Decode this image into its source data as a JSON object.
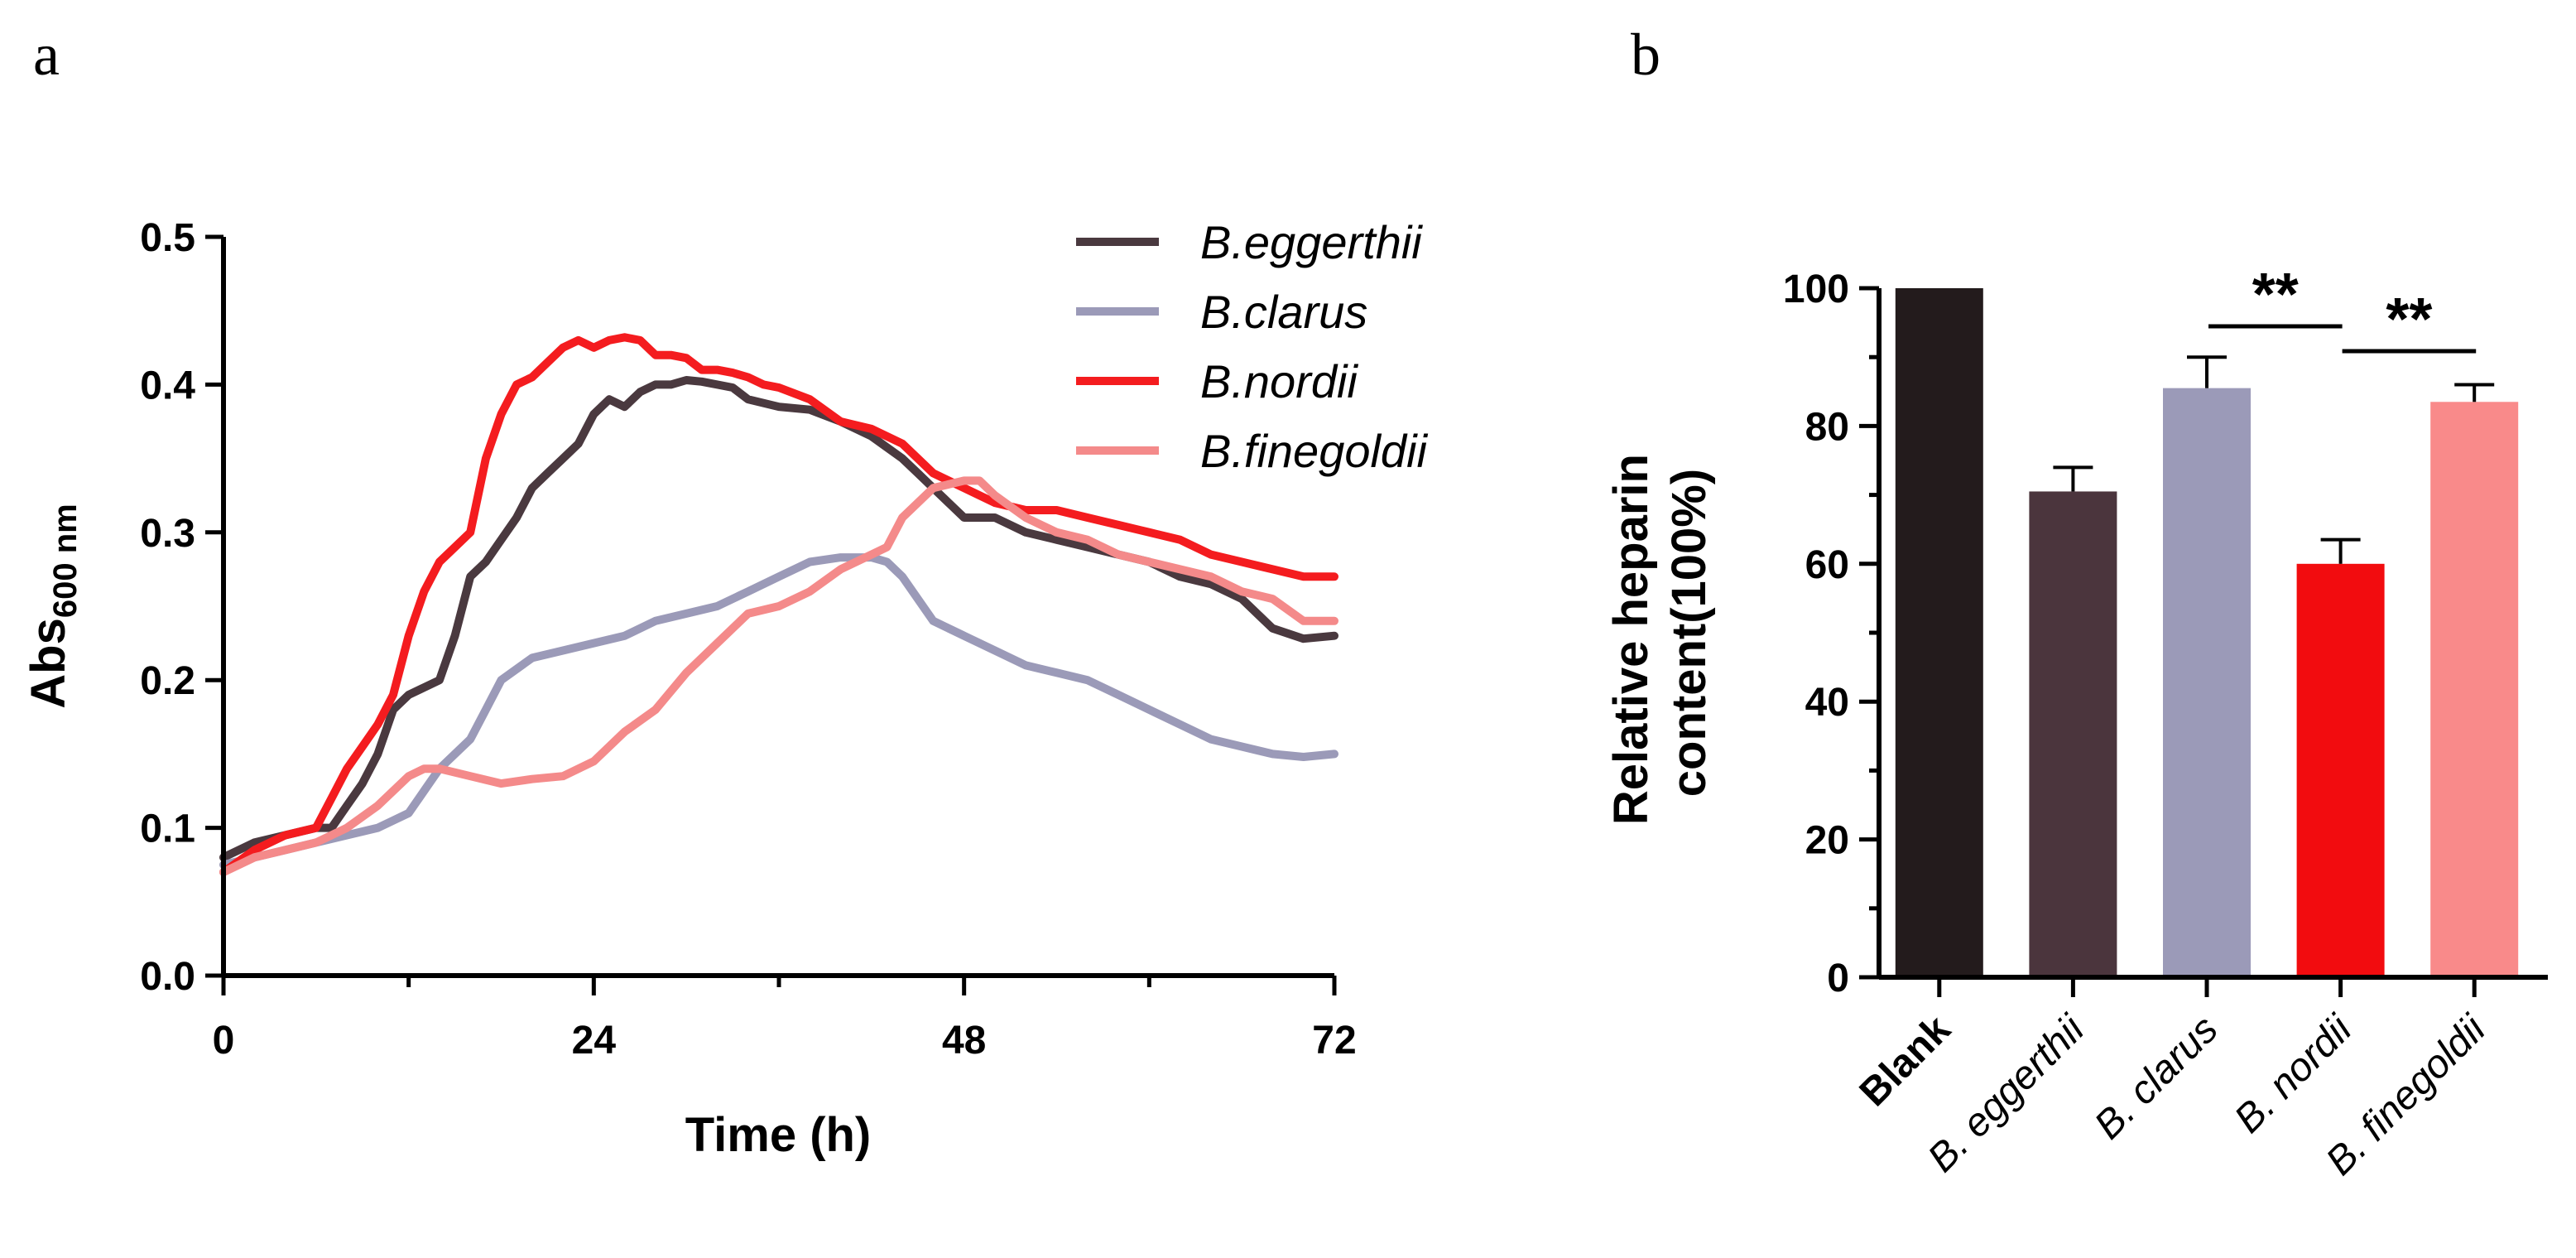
{
  "chart_data": [
    {
      "panel": "a",
      "type": "line",
      "xlabel": "Time (h)",
      "ylabel": "Abs",
      "ylabel_sub": "600 nm",
      "xlim": [
        0,
        72
      ],
      "ylim": [
        0,
        0.5
      ],
      "xticks": [
        0,
        24,
        48,
        72
      ],
      "xticks_minor": [
        12,
        36,
        60
      ],
      "yticks": [
        0.0,
        0.1,
        0.2,
        0.3,
        0.4,
        0.5
      ],
      "ytick_labels": [
        "0.0",
        "0.1",
        "0.2",
        "0.3",
        "0.4",
        "0.5"
      ],
      "legend_position": "top-right",
      "series": [
        {
          "name": "B.eggerthii",
          "color": "#4a393f",
          "x": [
            0,
            2,
            4,
            6,
            7,
            8,
            9,
            10,
            11,
            12,
            13,
            14,
            15,
            16,
            17,
            18,
            19,
            20,
            21,
            22,
            23,
            24,
            25,
            26,
            27,
            28,
            29,
            30,
            31,
            32,
            33,
            34,
            36,
            38,
            40,
            42,
            44,
            45,
            46,
            47,
            48,
            50,
            52,
            54,
            56,
            58,
            60,
            62,
            64,
            66,
            68,
            70,
            72
          ],
          "y": [
            0.08,
            0.09,
            0.095,
            0.1,
            0.1,
            0.115,
            0.13,
            0.15,
            0.18,
            0.19,
            0.195,
            0.2,
            0.23,
            0.27,
            0.28,
            0.295,
            0.31,
            0.33,
            0.34,
            0.35,
            0.36,
            0.38,
            0.39,
            0.385,
            0.395,
            0.4,
            0.4,
            0.403,
            0.402,
            0.4,
            0.398,
            0.39,
            0.385,
            0.383,
            0.375,
            0.365,
            0.35,
            0.34,
            0.33,
            0.32,
            0.31,
            0.31,
            0.3,
            0.295,
            0.29,
            0.285,
            0.28,
            0.27,
            0.265,
            0.255,
            0.235,
            0.228,
            0.23
          ]
        },
        {
          "name": "B.clarus",
          "color": "#9b9ab8",
          "x": [
            0,
            2,
            4,
            6,
            8,
            10,
            11,
            12,
            14,
            16,
            17,
            18,
            20,
            22,
            24,
            26,
            28,
            30,
            32,
            34,
            36,
            38,
            40,
            42,
            43,
            44,
            46,
            48,
            50,
            52,
            54,
            56,
            58,
            60,
            62,
            64,
            66,
            68,
            70,
            72
          ],
          "y": [
            0.075,
            0.08,
            0.085,
            0.09,
            0.095,
            0.1,
            0.105,
            0.11,
            0.14,
            0.16,
            0.18,
            0.2,
            0.215,
            0.22,
            0.225,
            0.23,
            0.24,
            0.245,
            0.25,
            0.26,
            0.27,
            0.28,
            0.283,
            0.283,
            0.28,
            0.27,
            0.24,
            0.23,
            0.22,
            0.21,
            0.205,
            0.2,
            0.19,
            0.18,
            0.17,
            0.16,
            0.155,
            0.15,
            0.148,
            0.15
          ]
        },
        {
          "name": "B.nordii",
          "color": "#f41c1f",
          "x": [
            0,
            2,
            4,
            6,
            7,
            8,
            9,
            10,
            11,
            12,
            13,
            14,
            15,
            16,
            17,
            18,
            19,
            20,
            21,
            22,
            23,
            24,
            25,
            26,
            27,
            28,
            29,
            30,
            31,
            32,
            33,
            34,
            35,
            36,
            38,
            40,
            42,
            44,
            46,
            48,
            50,
            52,
            54,
            56,
            58,
            60,
            62,
            64,
            66,
            68,
            70,
            72
          ],
          "y": [
            0.07,
            0.085,
            0.095,
            0.1,
            0.12,
            0.14,
            0.155,
            0.17,
            0.19,
            0.23,
            0.26,
            0.28,
            0.29,
            0.3,
            0.35,
            0.38,
            0.4,
            0.405,
            0.415,
            0.425,
            0.43,
            0.425,
            0.43,
            0.432,
            0.43,
            0.42,
            0.42,
            0.418,
            0.41,
            0.41,
            0.408,
            0.405,
            0.4,
            0.398,
            0.39,
            0.375,
            0.37,
            0.36,
            0.34,
            0.33,
            0.32,
            0.315,
            0.315,
            0.31,
            0.305,
            0.3,
            0.295,
            0.285,
            0.28,
            0.275,
            0.27,
            0.27
          ]
        },
        {
          "name": "B.finegoldii",
          "color": "#f48a8a",
          "x": [
            0,
            2,
            4,
            6,
            8,
            10,
            12,
            13,
            14,
            16,
            18,
            20,
            22,
            24,
            26,
            28,
            30,
            32,
            34,
            36,
            38,
            40,
            42,
            43,
            44,
            46,
            48,
            49,
            50,
            52,
            54,
            56,
            58,
            60,
            62,
            64,
            66,
            68,
            70,
            72
          ],
          "y": [
            0.07,
            0.08,
            0.085,
            0.09,
            0.1,
            0.115,
            0.135,
            0.14,
            0.14,
            0.135,
            0.13,
            0.133,
            0.135,
            0.145,
            0.165,
            0.18,
            0.205,
            0.225,
            0.245,
            0.25,
            0.26,
            0.275,
            0.285,
            0.29,
            0.31,
            0.33,
            0.335,
            0.335,
            0.325,
            0.31,
            0.3,
            0.295,
            0.285,
            0.28,
            0.275,
            0.27,
            0.26,
            0.255,
            0.24,
            0.24
          ]
        }
      ]
    },
    {
      "panel": "b",
      "type": "bar",
      "ylabel_lines": [
        "Relative heparin",
        "content(100%)"
      ],
      "ylim": [
        0,
        100
      ],
      "yticks": [
        0,
        20,
        40,
        60,
        80,
        100
      ],
      "yticks_minor": [
        10,
        30,
        50,
        70,
        90
      ],
      "categories": [
        "Blank",
        "B. eggerthii",
        "B. clarus",
        "B. nordii",
        "B. finegoldii"
      ],
      "values": [
        100,
        70.5,
        85.5,
        60,
        83.5
      ],
      "errors": [
        0,
        3.5,
        4.5,
        3.5,
        2.5
      ],
      "colors": [
        "#231b1c",
        "#4b353d",
        "#9b9ab8",
        "#f20c0f",
        "#f98a8a"
      ],
      "significance": [
        {
          "from": 2,
          "to": 3,
          "label": "**"
        },
        {
          "from": 3,
          "to": 4,
          "label": "**"
        }
      ]
    }
  ]
}
